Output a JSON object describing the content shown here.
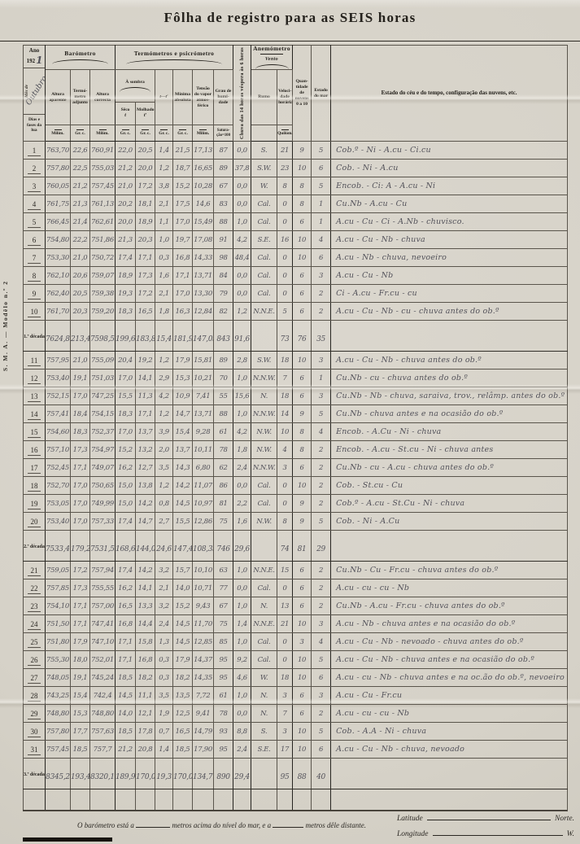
{
  "page": {
    "title": "Fôlha de registro para as SEIS horas",
    "side_label": "S. M. A. — Modêlo n.º 2"
  },
  "colors": {
    "paper": "#d6d2c8",
    "print_ink": "#272420",
    "handwriting_ink": "#53525a"
  },
  "corner": {
    "ano_label": "Ano",
    "ano_printed": "192",
    "ano_handwritten": "1",
    "mes_printed": "Mês de",
    "mes_handwritten": "Outubro",
    "dias_label": "Dias e fases da lua"
  },
  "header": {
    "barometro": "Barómetro",
    "termometros": "Termómetros e psicrómetro",
    "a_sombra": "À sombra",
    "chuva_vertical": "Chuva das 14 horas véspera às 6 horas",
    "anemometro": "Anemómetro",
    "vento": "Vento",
    "quantidade": "Quan- tidade de nuvens 0 a 10",
    "estado_mar": "Estado do mar",
    "estado_ceu": "Estado do céu e do tempo, configuração das nuvens, etc.",
    "altura_aparente": "Altura aparente",
    "termometro_adjunto": "Termó- metro adjunto",
    "altura_correcta": "Altura correcta",
    "seco": "Sêco",
    "seco_sub": "t",
    "molhado": "Molhado",
    "molhado_sub": "t′",
    "t_menos_t": "t—t′",
    "minima": "Mínima absoluta",
    "tensao": "Tensão do vapor atmos- férico",
    "grau": "Grau de humi- dade",
    "rumo": "Rumo",
    "velocidade": "Veloci- dade horária",
    "units_row": [
      "Milím.",
      "Gr. c.",
      "Milím.",
      "Gr. c.",
      "Gr. c.",
      "Gr. c.",
      "Gr. c.",
      "Milím.",
      "Satura- ção=100",
      "",
      "Quilóm."
    ]
  },
  "table": {
    "body": [
      {
        "kind": "day",
        "day": "1",
        "cells": [
          "763,70",
          "22,6",
          "760,91",
          "22,0",
          "20,5",
          "1,4",
          "21,5",
          "17,13",
          "87",
          "0,0",
          "S.",
          "21",
          "9",
          "5",
          "Cob.º - Ni - A.cu - Ci.cu"
        ]
      },
      {
        "kind": "day",
        "day": "2",
        "cells": [
          "757,80",
          "22,5",
          "755,03",
          "21,2",
          "20,0",
          "1,2",
          "18,7",
          "16,65",
          "89",
          "37,8",
          "S.W.",
          "23",
          "10",
          "6",
          "Cob. - Ni - A.cu"
        ]
      },
      {
        "kind": "day",
        "day": "3",
        "cells": [
          "760,05",
          "21,2",
          "757,45",
          "21,0",
          "17,2",
          "3,8",
          "15,2",
          "10,28",
          "67",
          "0,0",
          "W.",
          "8",
          "8",
          "5",
          "Encob. - Ci: A - A.cu - Ni"
        ]
      },
      {
        "kind": "day",
        "day": "4",
        "cells": [
          "761,75",
          "21,3",
          "761,13",
          "20,2",
          "18,1",
          "2,1",
          "17,5",
          "14,6",
          "83",
          "0,0",
          "Cal.",
          "0",
          "8",
          "1",
          "Cu.Nb - A.cu - Cu"
        ]
      },
      {
        "kind": "day",
        "day": "5",
        "cells": [
          "766,45",
          "21,4",
          "762,61",
          "20,0",
          "18,9",
          "1,1",
          "17,0",
          "15,49",
          "88",
          "1,0",
          "Cal.",
          "0",
          "6",
          "1",
          "A.cu - Cu - Ci - A.Nb - chuvisco."
        ]
      },
      {
        "kind": "day",
        "day": "6",
        "cells": [
          "754,80",
          "22,2",
          "751,86",
          "21,3",
          "20,3",
          "1,0",
          "19,7",
          "17,08",
          "91",
          "4,2",
          "S.E.",
          "16",
          "10",
          "4",
          "A.cu - Cu - Nb - chuva"
        ]
      },
      {
        "kind": "day",
        "day": "7",
        "cells": [
          "753,30",
          "21,0",
          "750,72",
          "17,4",
          "17,1",
          "0,3",
          "16,8",
          "14,33",
          "98",
          "48,4",
          "Cal.",
          "0",
          "10",
          "6",
          "A.cu - Nb - chuva, nevoeiro"
        ]
      },
      {
        "kind": "day",
        "day": "8",
        "cells": [
          "762,10",
          "20,6",
          "759,07",
          "18,9",
          "17,3",
          "1,6",
          "17,1",
          "13,71",
          "84",
          "0,0",
          "Cal.",
          "0",
          "6",
          "3",
          "A.cu - Cu - Nb"
        ]
      },
      {
        "kind": "day",
        "day": "9",
        "cells": [
          "762,40",
          "20,5",
          "759,38",
          "19,3",
          "17,2",
          "2,1",
          "17,0",
          "13,30",
          "79",
          "0,0",
          "Cal.",
          "0",
          "6",
          "2",
          "Ci - A.cu - Fr.cu - cu"
        ]
      },
      {
        "kind": "day",
        "day": "10",
        "cells": [
          "761,70",
          "20,3",
          "759,20",
          "18,3",
          "16,5",
          "1,8",
          "16,3",
          "12,84",
          "82",
          "1,2",
          "N.N.E.",
          "5",
          "6",
          "2",
          "A.cu - Cu - Nb - cu - chuva antes do ob.º"
        ]
      },
      {
        "kind": "decade",
        "label": "1.ª década",
        "cells": [
          "7624,80",
          "213,4",
          "7598,56",
          "199,6",
          "183,8",
          "15,4",
          "181,9",
          "147,03",
          "843",
          "91,6",
          "",
          "73",
          "76",
          "35",
          ""
        ]
      },
      {
        "kind": "day",
        "day": "11",
        "cells": [
          "757,95",
          "21,0",
          "755,09",
          "20,4",
          "19,2",
          "1,2",
          "17,9",
          "15,81",
          "89",
          "2,8",
          "S.W.",
          "18",
          "10",
          "3",
          "A.cu - Cu - Nb - chuva antes do ob.º"
        ]
      },
      {
        "kind": "day",
        "day": "12",
        "cells": [
          "753,40",
          "19,1",
          "751,03",
          "17,0",
          "14,1",
          "2,9",
          "15,3",
          "10,21",
          "70",
          "1,0",
          "N.N.W.",
          "7",
          "6",
          "1",
          "Cu.Nb - cu - chuva antes do ob.º"
        ]
      },
      {
        "kind": "day",
        "day": "13",
        "cells": [
          "752,15",
          "17,0",
          "747,25",
          "15,5",
          "11,3",
          "4,2",
          "10,9",
          "7,41",
          "55",
          "15,6",
          "N.",
          "18",
          "6",
          "3",
          "Cu.Nb - Nb - chuva, saraiva, trov., relâmp. antes do ob.º"
        ]
      },
      {
        "kind": "day",
        "day": "14",
        "cells": [
          "757,41",
          "18,4",
          "754,15",
          "18,3",
          "17,1",
          "1,2",
          "14,7",
          "13,71",
          "88",
          "1,0",
          "N.N.W.",
          "14",
          "9",
          "5",
          "Cu.Nb - chuva antes e na ocasião do ob.º"
        ]
      },
      {
        "kind": "day",
        "day": "15",
        "cells": [
          "754,60",
          "18,3",
          "752,37",
          "17,0",
          "13,7",
          "3,9",
          "15,4",
          "9,28",
          "61",
          "4,2",
          "N.W.",
          "10",
          "8",
          "4",
          "Encob. - A.Cu - Ni - chuva"
        ]
      },
      {
        "kind": "day",
        "day": "16",
        "cells": [
          "757,10",
          "17,3",
          "754,97",
          "15,2",
          "13,2",
          "2,0",
          "13,7",
          "10,11",
          "78",
          "1,8",
          "N.W.",
          "4",
          "8",
          "2",
          "Encob. - A.cu - St.cu - Ni - chuva antes"
        ]
      },
      {
        "kind": "day",
        "day": "17",
        "cells": [
          "752,45",
          "17,1",
          "749,07",
          "16,2",
          "12,7",
          "3,5",
          "14,3",
          "6,80",
          "62",
          "2,4",
          "N.N.W.",
          "3",
          "6",
          "2",
          "Cu.Nb - cu - A.cu - chuva antes do ob.º"
        ]
      },
      {
        "kind": "day",
        "day": "18",
        "cells": [
          "752,70",
          "17,0",
          "750,65",
          "15,0",
          "13,8",
          "1,2",
          "14,2",
          "11,07",
          "86",
          "0,0",
          "Cal.",
          "0",
          "10",
          "2",
          "Cob. - St.cu - Cu"
        ]
      },
      {
        "kind": "day",
        "day": "19",
        "cells": [
          "753,05",
          "17,0",
          "749,99",
          "15,0",
          "14,2",
          "0,8",
          "14,5",
          "10,97",
          "81",
          "2,2",
          "Cal.",
          "0",
          "9",
          "2",
          "Cob.º - A.cu - St.Cu - Ni - chuva"
        ]
      },
      {
        "kind": "day",
        "day": "20",
        "cells": [
          "753,40",
          "17,0",
          "757,33",
          "17,4",
          "14,7",
          "2,7",
          "15,5",
          "12,86",
          "75",
          "1,6",
          "N.W.",
          "8",
          "9",
          "5",
          "Cob. - Ni - A.Cu"
        ]
      },
      {
        "kind": "decade",
        "label": "2.ª década",
        "cells": [
          "7533,40",
          "179,2",
          "7531,56",
          "168,6",
          "144,0",
          "24,6",
          "147,4",
          "108,33",
          "746",
          "29,6",
          "",
          "74",
          "81",
          "29",
          ""
        ]
      },
      {
        "kind": "day",
        "day": "21",
        "cells": [
          "759,05",
          "17,2",
          "757,94",
          "17,4",
          "14,2",
          "3,2",
          "15,7",
          "10,10",
          "63",
          "1,0",
          "N.N.E.",
          "15",
          "6",
          "2",
          "Cu.Nb - Cu - Fr.cu - chuva antes do ob.º"
        ]
      },
      {
        "kind": "day",
        "day": "22",
        "cells": [
          "757,85",
          "17,3",
          "755,55",
          "16,2",
          "14,1",
          "2,1",
          "14,0",
          "10,71",
          "77",
          "0,0",
          "Cal.",
          "0",
          "6",
          "2",
          "A.cu - cu - cu - Nb"
        ]
      },
      {
        "kind": "day",
        "day": "23",
        "cells": [
          "754,10",
          "17,1",
          "757,00",
          "16,5",
          "13,3",
          "3,2",
          "15,2",
          "9,43",
          "67",
          "1,0",
          "N.",
          "13",
          "6",
          "2",
          "Cu.Nb - A.cu - Fr.cu - chuva antes do ob.º"
        ]
      },
      {
        "kind": "day",
        "day": "24",
        "cells": [
          "751,50",
          "17,1",
          "747,41",
          "16,8",
          "14,4",
          "2,4",
          "14,5",
          "11,70",
          "75",
          "1,4",
          "N.N.E.",
          "21",
          "10",
          "3",
          "A.cu - Nb - chuva antes e na ocasião do ob.º"
        ]
      },
      {
        "kind": "day",
        "day": "25",
        "cells": [
          "751,80",
          "17,9",
          "747,10",
          "17,1",
          "15,8",
          "1,3",
          "14,5",
          "12,85",
          "85",
          "1,0",
          "Cal.",
          "0",
          "3",
          "4",
          "A.cu - Cu - Nb - nevoado - chuva antes do ob.º"
        ]
      },
      {
        "kind": "day",
        "day": "26",
        "cells": [
          "755,30",
          "18,0",
          "752,01",
          "17,1",
          "16,8",
          "0,3",
          "17,9",
          "14,37",
          "95",
          "9,2",
          "Cal.",
          "0",
          "10",
          "5",
          "A.cu - Cu - Nb - chuva antes e na ocasião do ob.º"
        ]
      },
      {
        "kind": "day",
        "day": "27",
        "cells": [
          "748,05",
          "19,1",
          "745,24",
          "18,5",
          "18,2",
          "0,3",
          "18,2",
          "14,35",
          "95",
          "4,6",
          "W.",
          "18",
          "10",
          "6",
          "A.cu - cu - Nb - chuva antes e na oc.ão do ob.º, nevoeiro"
        ]
      },
      {
        "kind": "day",
        "day": "28",
        "cells": [
          "743,25",
          "15,4",
          "742,4",
          "14,5",
          "11,1",
          "3,5",
          "13,5",
          "7,72",
          "61",
          "1,0",
          "N.",
          "3",
          "6",
          "3",
          "A.cu - Cu - Fr.cu"
        ]
      },
      {
        "kind": "day",
        "day": "29",
        "cells": [
          "748,80",
          "15,3",
          "748,80",
          "14,0",
          "12,1",
          "1,9",
          "12,5",
          "9,41",
          "78",
          "0,0",
          "N.",
          "7",
          "6",
          "2",
          "A.cu - cu - cu - Nb"
        ]
      },
      {
        "kind": "day",
        "day": "30",
        "cells": [
          "757,80",
          "17,7",
          "757,63",
          "18,5",
          "17,8",
          "0,7",
          "16,5",
          "14,79",
          "93",
          "8,8",
          "S.",
          "3",
          "10",
          "5",
          "Cob. - A.A - Ni - chuva"
        ]
      },
      {
        "kind": "day",
        "day": "31",
        "cells": [
          "757,45",
          "18,5",
          "757,7",
          "21,2",
          "20,8",
          "1,4",
          "18,5",
          "17,90",
          "95",
          "2,4",
          "S.E.",
          "17",
          "10",
          "6",
          "A.cu - Cu - Nb - chuva, nevoado"
        ]
      },
      {
        "kind": "decade",
        "label": "3.ª década",
        "cells": [
          "8345,2",
          "193,4",
          "8320,1",
          "189,9",
          "170,0",
          "19,3",
          "170,0",
          "134,71",
          "890",
          "29,4",
          "",
          "95",
          "88",
          "40",
          ""
        ]
      },
      {
        "kind": "blank"
      }
    ]
  },
  "footer": {
    "barometer_note": [
      "O barómetro está a",
      "metros acima do nível do mar, e a",
      "metros dêle distante."
    ],
    "latitude_label": "Latitude",
    "latitude_suffix": "Norte.",
    "longitude_label": "Longitude",
    "longitude_suffix": "W."
  }
}
